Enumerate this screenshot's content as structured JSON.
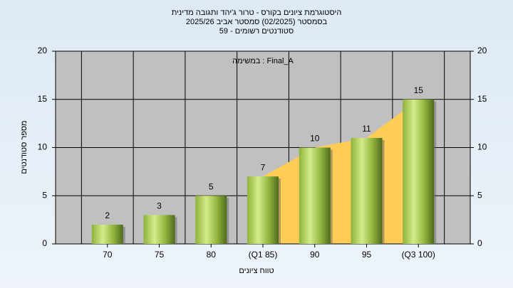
{
  "chart_data": {
    "type": "bar",
    "title": "היסטוגרמת ציונים בקורס - טרור ג'יהד ותגובה מדינית",
    "subtitle": "בסמסטר  (02/2025)  סמסטר אביב 2025/26",
    "subtitle2": "סטודנטים רשומים - 59",
    "annotation": "במשימה : Final_A",
    "x_label": "טווח ציונים",
    "y_label": "מספר סטודנטים",
    "categories": [
      "70",
      "75",
      "80",
      "(Q1 85)",
      "90",
      "95",
      "(Q3 100)"
    ],
    "values": [
      2,
      3,
      5,
      7,
      10,
      11,
      15
    ],
    "color": "#9bc142",
    "ylim": [
      0,
      20
    ],
    "yticks": [
      0,
      5,
      10,
      15,
      20
    ],
    "y2lim": [
      0,
      20
    ],
    "y2ticks": [
      0,
      5,
      10,
      15,
      20
    ],
    "grid": true
  }
}
